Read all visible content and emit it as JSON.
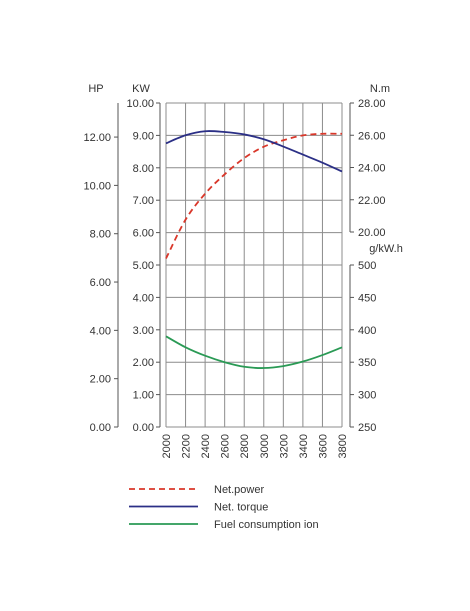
{
  "chart_data": {
    "type": "line",
    "x": {
      "ticks": [
        2000,
        2200,
        2400,
        2600,
        2800,
        3000,
        3200,
        3400,
        3600,
        3800
      ],
      "range": [
        2000,
        3800
      ],
      "tick_labels": [
        "2000",
        "2200",
        "2400",
        "2600",
        "2800",
        "3000",
        "3200",
        "3400",
        "3600",
        "3800"
      ]
    },
    "axes": {
      "hp": {
        "label": "HP",
        "range": [
          0,
          13.41
        ],
        "ticks": [
          "0.00",
          "2.00",
          "4.00",
          "6.00",
          "8.00",
          "10.00",
          "12.00"
        ],
        "tick_values": [
          0,
          2,
          4,
          6,
          8,
          10,
          12
        ]
      },
      "kw": {
        "label": "KW",
        "range": [
          0,
          10
        ],
        "ticks": [
          "0.00",
          "1.00",
          "2.00",
          "3.00",
          "4.00",
          "5.00",
          "6.00",
          "7.00",
          "8.00",
          "9.00",
          "10.00"
        ],
        "tick_values": [
          0,
          1,
          2,
          3,
          4,
          5,
          6,
          7,
          8,
          9,
          10
        ]
      },
      "torque": {
        "label": "N.m",
        "range": [
          20,
          28
        ],
        "ticks": [
          "20.00",
          "22.00",
          "24.00",
          "26.00",
          "28.00"
        ],
        "tick_values": [
          20,
          22,
          24,
          26,
          28
        ]
      },
      "fuel": {
        "label": "g/kW.h",
        "range": [
          250,
          500
        ],
        "ticks": [
          "250",
          "300",
          "350",
          "400",
          "450",
          "500"
        ],
        "tick_values": [
          250,
          300,
          350,
          400,
          450,
          500
        ]
      }
    },
    "series": [
      {
        "name": "Net.power",
        "axis": "kw",
        "color": "#d9372a",
        "dash": true,
        "x": [
          2000,
          2200,
          2400,
          2600,
          2800,
          3000,
          3200,
          3400,
          3600,
          3800
        ],
        "y": [
          5.2,
          6.4,
          7.2,
          7.8,
          8.3,
          8.65,
          8.85,
          9.0,
          9.05,
          9.05
        ]
      },
      {
        "name": "Net. torque",
        "axis": "torque",
        "color": "#2b2f86",
        "dash": false,
        "x": [
          2000,
          2200,
          2400,
          2600,
          2800,
          3000,
          3200,
          3400,
          3600,
          3800
        ],
        "y": [
          25.5,
          26.0,
          26.25,
          26.2,
          26.05,
          25.75,
          25.3,
          24.8,
          24.3,
          23.75
        ]
      },
      {
        "name": "Fuel consumption ion",
        "axis": "fuel",
        "color": "#2a9a55",
        "dash": false,
        "x": [
          2000,
          2200,
          2400,
          2600,
          2800,
          3000,
          3200,
          3400,
          3600,
          3800
        ],
        "y": [
          390,
          373,
          360,
          350,
          343,
          341,
          344,
          351,
          361,
          373
        ]
      }
    ],
    "grid": true,
    "legend": "bottom"
  }
}
